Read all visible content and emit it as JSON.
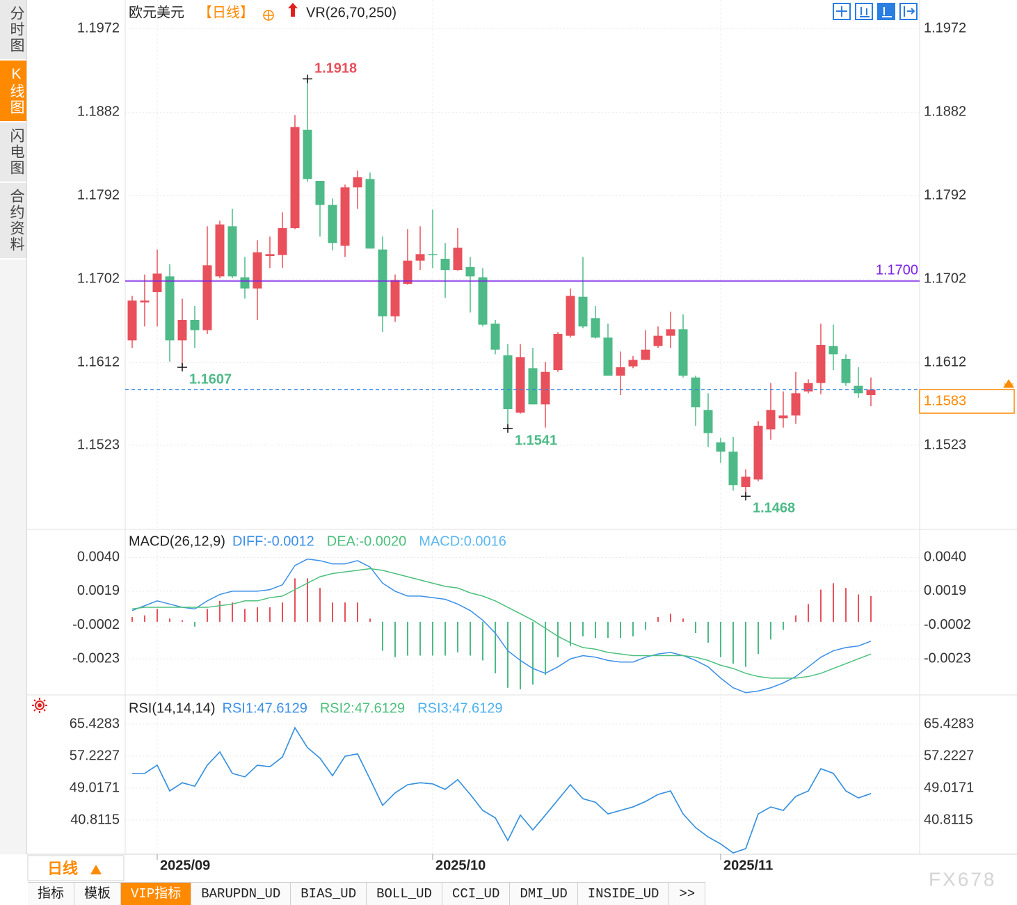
{
  "sidebar": {
    "tabs": [
      "分时图",
      "K线图",
      "闪电图",
      "合约资料"
    ],
    "active": 1
  },
  "footer": {
    "period": "日线",
    "tabs": [
      "指标",
      "模板",
      "VIP指标",
      "BARUPDN_UD",
      "BIAS_UD",
      "BOLL_UD",
      "CCI_UD",
      "DMI_UD",
      "INSIDE_UD",
      ">>"
    ],
    "active": 2
  },
  "watermark": "FX678",
  "chart_data": [
    {
      "type": "candlestick",
      "title": "欧元美元",
      "period": "【日线】",
      "indicator": "VR(26,70,250)",
      "categories": [
        null,
        null,
        "2025/09",
        null,
        null,
        null,
        null,
        null,
        null,
        null,
        null,
        null,
        null,
        null,
        null,
        null,
        null,
        null,
        null,
        null,
        null,
        null,
        null,
        null,
        "2025/10",
        null,
        null,
        null,
        null,
        null,
        null,
        null,
        null,
        null,
        null,
        null,
        null,
        null,
        null,
        null,
        null,
        null,
        null,
        null,
        null,
        null,
        null,
        "2025/11",
        null,
        null,
        null,
        null,
        null,
        null,
        null,
        null,
        null,
        null,
        null,
        null
      ],
      "open": [
        1.1636,
        1.1677,
        1.1688,
        1.1705,
        1.1636,
        1.1658,
        1.1647,
        1.1705,
        1.1759,
        1.1704,
        1.1692,
        1.1727,
        1.1728,
        1.1757,
        1.1863,
        1.1808,
        1.1782,
        1.1738,
        1.1801,
        1.181,
        1.1734,
        1.1662,
        1.1697,
        1.1722,
        1.1729,
        1.1724,
        1.1712,
        1.1715,
        1.1704,
        1.1654,
        1.162,
        1.1558,
        1.1606,
        1.1567,
        1.1604,
        1.1641,
        1.1683,
        1.166,
        1.1639,
        1.1598,
        1.1608,
        1.1615,
        1.163,
        1.1641,
        1.1648,
        1.1596,
        1.1561,
        1.1526,
        1.1516,
        1.1478,
        1.1486,
        1.154,
        1.1552,
        1.1555,
        1.1581,
        1.159,
        1.163,
        1.1616,
        1.1587,
        1.1577
      ],
      "high": [
        1.1684,
        1.1707,
        1.1734,
        1.1718,
        1.1681,
        1.1673,
        1.1759,
        1.1765,
        1.1778,
        1.1726,
        1.1744,
        1.1748,
        1.1774,
        1.1879,
        1.1918,
        1.1808,
        1.1789,
        1.1804,
        1.1819,
        1.1817,
        1.1748,
        1.1707,
        1.1756,
        1.1759,
        1.1777,
        1.1741,
        1.1757,
        1.1726,
        1.1714,
        1.1658,
        1.1632,
        1.1632,
        1.1628,
        1.1613,
        1.1645,
        1.1692,
        1.1726,
        1.1673,
        1.1654,
        1.1624,
        1.1619,
        1.1647,
        1.1651,
        1.1667,
        1.1664,
        1.1598,
        1.1579,
        1.1531,
        1.1532,
        1.1497,
        1.1549,
        1.159,
        1.1581,
        1.1602,
        1.1594,
        1.1654,
        1.1653,
        1.1621,
        1.1607,
        1.1596
      ],
      "low": [
        1.1628,
        1.1651,
        1.1651,
        1.1613,
        1.1607,
        1.1628,
        1.1643,
        1.1703,
        1.1703,
        1.1681,
        1.1658,
        1.1714,
        1.1714,
        1.1756,
        1.1807,
        1.1748,
        1.1733,
        1.1726,
        1.1778,
        1.1735,
        1.1645,
        1.1656,
        1.1696,
        1.1712,
        1.1714,
        1.1682,
        1.1711,
        1.1666,
        1.1651,
        1.1621,
        1.1541,
        1.1557,
        1.1567,
        1.1542,
        1.1602,
        1.1639,
        1.1649,
        1.1638,
        1.1598,
        1.1577,
        1.1606,
        1.1615,
        1.1628,
        1.1628,
        1.1596,
        1.1544,
        1.1521,
        1.1504,
        1.1474,
        1.1468,
        1.1484,
        1.1529,
        1.1542,
        1.1546,
        1.1579,
        1.1578,
        1.1604,
        1.1587,
        1.1574,
        1.1565
      ],
      "close": [
        1.1679,
        1.1679,
        1.1708,
        1.1636,
        1.1658,
        1.1647,
        1.1717,
        1.1761,
        1.1705,
        1.1692,
        1.1731,
        1.1729,
        1.1757,
        1.1866,
        1.181,
        1.1782,
        1.1741,
        1.1801,
        1.1812,
        1.1735,
        1.1662,
        1.1701,
        1.1722,
        1.1729,
        1.1728,
        1.1712,
        1.1736,
        1.1705,
        1.1653,
        1.1626,
        1.1562,
        1.1618,
        1.1567,
        1.1602,
        1.1643,
        1.1684,
        1.1651,
        1.1639,
        1.1598,
        1.1607,
        1.1615,
        1.1626,
        1.1641,
        1.1648,
        1.1598,
        1.1564,
        1.1536,
        1.1516,
        1.148,
        1.1489,
        1.1544,
        1.1561,
        1.1555,
        1.1579,
        1.159,
        1.1631,
        1.1621,
        1.159,
        1.1579,
        1.1583
      ],
      "up_color": "#e8505b",
      "down_color": "#4dba87",
      "ylim": [
        1.1433,
        1.2003
      ],
      "yticks": [
        1.1972,
        1.1882,
        1.1792,
        1.1702,
        1.1612,
        1.1523
      ],
      "grid": true,
      "hline": {
        "value": 1.17,
        "label": "1.1700",
        "color": "#7a22e6"
      },
      "last_line_color": "#2f86e6",
      "last_label_color": "#ff8a00"
    },
    {
      "type": "macd",
      "title": "MACD(26,12,9)",
      "series": [
        {
          "name": "DIFF:-0.0012",
          "type": "line",
          "color": "#3b8fe8",
          "values": [
            0.0007,
            0.001,
            0.0013,
            0.0011,
            0.0009,
            0.0008,
            0.0013,
            0.0017,
            0.0019,
            0.0019,
            0.0019,
            0.002,
            0.0023,
            0.0035,
            0.0039,
            0.0038,
            0.0036,
            0.0036,
            0.0038,
            0.0034,
            0.0024,
            0.0019,
            0.0016,
            0.0016,
            0.0015,
            0.0014,
            0.0011,
            0.0007,
            0.0001,
            -0.0007,
            -0.0018,
            -0.0024,
            -0.0029,
            -0.0032,
            -0.0028,
            -0.0023,
            -0.0021,
            -0.0022,
            -0.0024,
            -0.0025,
            -0.0025,
            -0.0022,
            -0.002,
            -0.0019,
            -0.0021,
            -0.0024,
            -0.0028,
            -0.0035,
            -0.0041,
            -0.0044,
            -0.0043,
            -0.0041,
            -0.0038,
            -0.0034,
            -0.0028,
            -0.0022,
            -0.0018,
            -0.0016,
            -0.0015,
            -0.0012
          ]
        },
        {
          "name": "DEA:-0.0020",
          "type": "line",
          "color": "#4cbf7c",
          "values": [
            0.0008,
            0.0009,
            0.0009,
            0.0009,
            0.0009,
            0.0009,
            0.0009,
            0.001,
            0.0011,
            0.0013,
            0.0013,
            0.0015,
            0.0016,
            0.002,
            0.0024,
            0.0028,
            0.003,
            0.0031,
            0.0032,
            0.0033,
            0.0032,
            0.003,
            0.0028,
            0.0026,
            0.0024,
            0.0022,
            0.0021,
            0.0018,
            0.0016,
            0.0013,
            0.0009,
            0.0005,
            0.0001,
            -0.0004,
            -0.0009,
            -0.0013,
            -0.0016,
            -0.0017,
            -0.0019,
            -0.002,
            -0.0021,
            -0.0021,
            -0.0021,
            -0.0021,
            -0.0021,
            -0.0022,
            -0.0024,
            -0.0027,
            -0.0029,
            -0.0032,
            -0.0034,
            -0.0035,
            -0.0035,
            -0.0035,
            -0.0034,
            -0.0032,
            -0.0029,
            -0.0026,
            -0.0023,
            -0.002
          ]
        },
        {
          "name": "MACD:0.0016",
          "type": "bar",
          "color": "#5ab6f0",
          "values": [
            0.0003,
            0.0004,
            0.0008,
            0.0002,
            0.0001,
            -0.0003,
            0.0008,
            0.0013,
            0.0012,
            0.0008,
            0.0009,
            0.0009,
            0.0012,
            0.0027,
            0.0027,
            0.0021,
            0.0012,
            0.0012,
            0.0012,
            0.0002,
            -0.0018,
            -0.0022,
            -0.0021,
            -0.0021,
            -0.0021,
            -0.0021,
            -0.0019,
            -0.0021,
            -0.0024,
            -0.0032,
            -0.0041,
            -0.0042,
            -0.0039,
            -0.0033,
            -0.0022,
            -0.0015,
            -0.0009,
            -0.001,
            -0.001,
            -0.001,
            -0.0009,
            -0.0005,
            0.0003,
            0.0005,
            0.0002,
            -0.0007,
            -0.0013,
            -0.0022,
            -0.0026,
            -0.0028,
            -0.002,
            -0.0011,
            -0.0005,
            0.0004,
            0.0011,
            0.002,
            0.0024,
            0.0021,
            0.0017,
            0.0016
          ]
        }
      ],
      "up_color": "#e8505b",
      "down_color": "#4dba87",
      "ylim": [
        -0.0045,
        0.0057
      ],
      "yticks": [
        {
          "value": 0.004,
          "label": "0.0040"
        },
        0.0019,
        -0.0002,
        -0.0023
      ],
      "grid": true
    },
    {
      "type": "line",
      "title": "RSI(14,14,14)",
      "series": [
        {
          "name": "RSI1:47.6129",
          "color": "#3b8fe8",
          "values": [
            52.8,
            52.8,
            54.9,
            48.3,
            50.4,
            49.5,
            54.9,
            58.3,
            52.8,
            51.9,
            54.9,
            54.5,
            57,
            64.5,
            59.4,
            56.7,
            52.2,
            57.2,
            57.8,
            51.3,
            44.6,
            47.8,
            49.9,
            50.4,
            50.1,
            48.7,
            51.2,
            47.4,
            43.3,
            41.4,
            35.6,
            42.1,
            38.3,
            42.1,
            46,
            49.9,
            46.3,
            45.4,
            42.4,
            43.3,
            44.2,
            45.6,
            47.4,
            48.3,
            42.4,
            38.9,
            36.5,
            34.7,
            32.4,
            33.5,
            42.4,
            44.2,
            43.3,
            46.9,
            48.3,
            54,
            52.8,
            48.3,
            46.5,
            47.6129
          ]
        },
        {
          "name": "RSI2:47.6129",
          "color": "#4cbf7c",
          "values": [
            52.8,
            52.8,
            54.9,
            48.3,
            50.4,
            49.5,
            54.9,
            58.3,
            52.8,
            51.9,
            54.9,
            54.5,
            57,
            64.5,
            59.4,
            56.7,
            52.2,
            57.2,
            57.8,
            51.3,
            44.6,
            47.8,
            49.9,
            50.4,
            50.1,
            48.7,
            51.2,
            47.4,
            43.3,
            41.4,
            35.6,
            42.1,
            38.3,
            42.1,
            46,
            49.9,
            46.3,
            45.4,
            42.4,
            43.3,
            44.2,
            45.6,
            47.4,
            48.3,
            42.4,
            38.9,
            36.5,
            34.7,
            32.4,
            33.5,
            42.4,
            44.2,
            43.3,
            46.9,
            48.3,
            54,
            52.8,
            48.3,
            46.5,
            47.6129
          ]
        },
        {
          "name": "RSI3:47.6129",
          "color": "#4ab0f0",
          "values": [
            52.8,
            52.8,
            54.9,
            48.3,
            50.4,
            49.5,
            54.9,
            58.3,
            52.8,
            51.9,
            54.9,
            54.5,
            57,
            64.5,
            59.4,
            56.7,
            52.2,
            57.2,
            57.8,
            51.3,
            44.6,
            47.8,
            49.9,
            50.4,
            50.1,
            48.7,
            51.2,
            47.4,
            43.3,
            41.4,
            35.6,
            42.1,
            38.3,
            42.1,
            46,
            49.9,
            46.3,
            45.4,
            42.4,
            43.3,
            44.2,
            45.6,
            47.4,
            48.3,
            42.4,
            38.9,
            36.5,
            34.7,
            32.4,
            33.5,
            42.4,
            44.2,
            43.3,
            46.9,
            48.3,
            54,
            52.8,
            48.3,
            46.5,
            47.6129
          ]
        }
      ],
      "ylim": [
        32.07,
        72.74
      ],
      "yticks": [
        65.4283,
        57.2227,
        49.0171,
        40.8115
      ],
      "grid": true
    }
  ]
}
